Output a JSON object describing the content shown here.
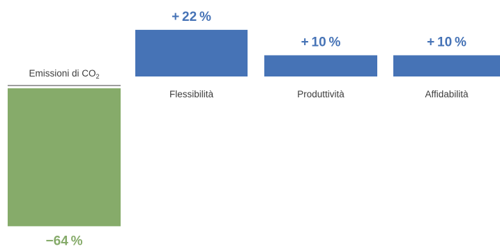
{
  "chart_data": {
    "type": "bar",
    "categories": [
      "Emissioni di CO",
      "Flessibilità",
      "Produttività",
      "Affidabilità"
    ],
    "category_subscripts": [
      "2",
      "",
      "",
      ""
    ],
    "values": [
      -64,
      22,
      10,
      10
    ],
    "value_labels": [
      "−64 %",
      "+ 22 %",
      "+ 10 %",
      "+ 10 %"
    ],
    "colors": {
      "negative": "#86ab6a",
      "positive": "#4673b6",
      "baseline": "#3c3c3c"
    },
    "grid": false,
    "legend": "none"
  }
}
